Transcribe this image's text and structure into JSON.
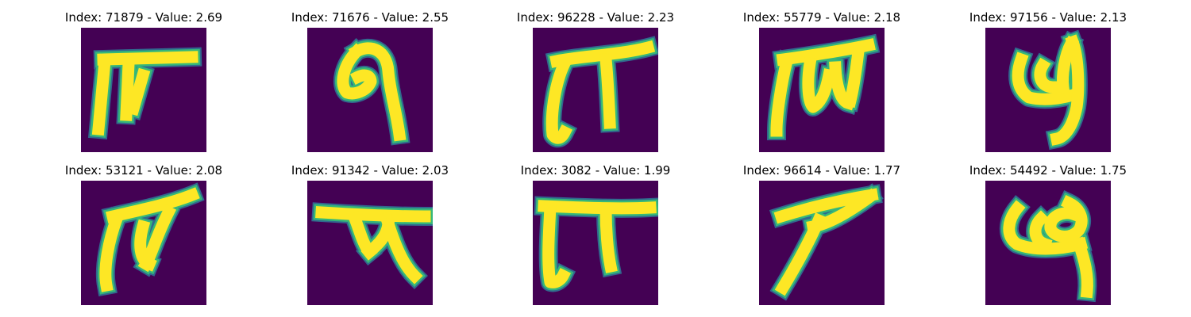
{
  "colors": {
    "background": "#440154",
    "edge_outer": "#31688e",
    "edge_inner": "#35b779",
    "stroke": "#fde725"
  },
  "panels": [
    {
      "title": "Index: 71879 - Value: 2.69"
    },
    {
      "title": "Index: 71676 - Value: 2.55"
    },
    {
      "title": "Index: 96228 - Value: 2.23"
    },
    {
      "title": "Index: 55779 - Value: 2.18"
    },
    {
      "title": "Index: 97156 - Value: 2.13"
    },
    {
      "title": "Index: 53121 - Value: 2.08"
    },
    {
      "title": "Index: 91342 - Value: 2.03"
    },
    {
      "title": "Index: 3082 - Value: 1.99"
    },
    {
      "title": "Index: 96614 - Value: 1.77"
    },
    {
      "title": "Index: 54492 - Value: 1.75"
    }
  ]
}
